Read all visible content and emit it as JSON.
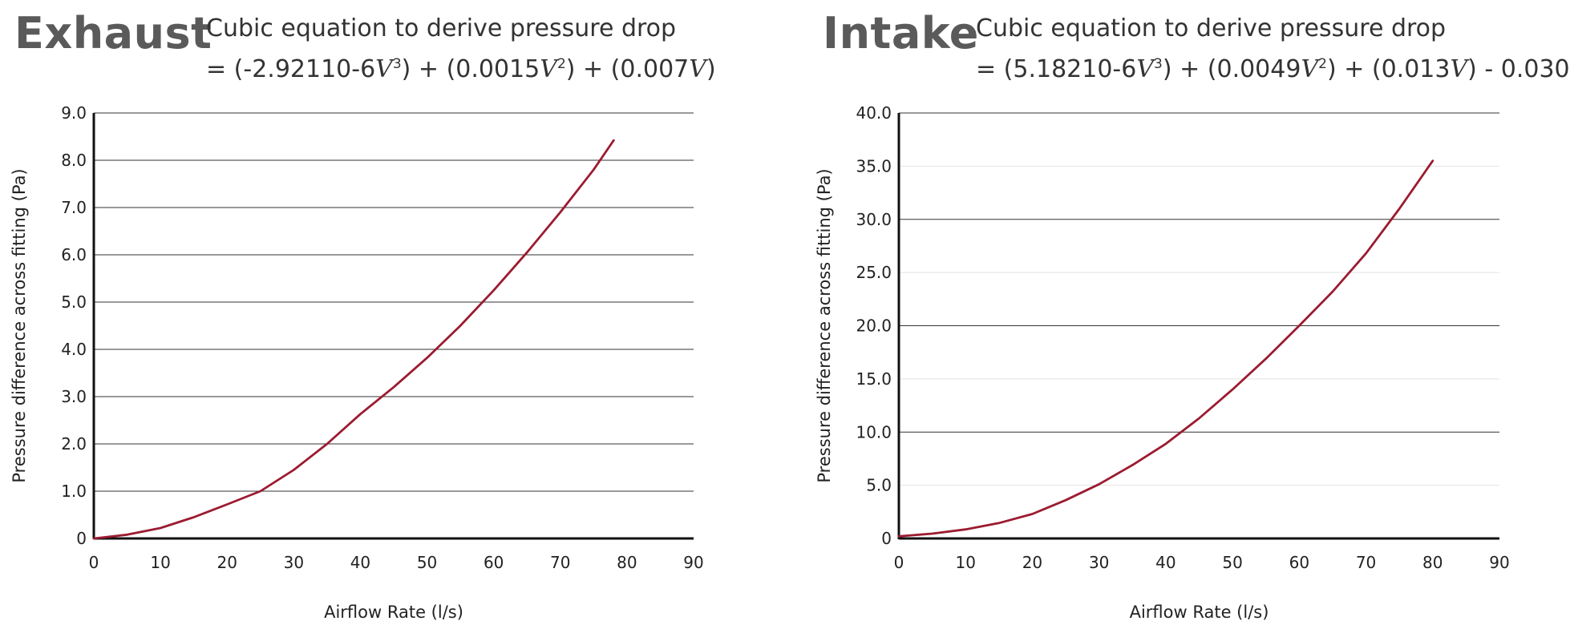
{
  "colors": {
    "curve": "#9b1b30",
    "grid": "#333333",
    "axis": "#111111"
  },
  "chart_data": [
    {
      "type": "line",
      "title": "Exhaust",
      "equation": {
        "line1": "Cubic equation to derive pressure drop",
        "prefix": "= (-2.92110-6",
        "t1_sup": "3",
        "mid1": ") + (0.0015",
        "t2_sup": "2",
        "mid2": ") + (0.007",
        "suffix": ")"
      },
      "var_symbol": "V",
      "xlabel": "Airflow Rate (l/s)",
      "ylabel": "Pressure difference across fitting (Pa)",
      "xlim": [
        0,
        90
      ],
      "ylim": [
        0,
        9
      ],
      "xticks": [
        0,
        10,
        20,
        30,
        40,
        50,
        60,
        70,
        80,
        90
      ],
      "xtick_labels": [
        "0",
        "10",
        "20",
        "30",
        "40",
        "50",
        "60",
        "70",
        "80",
        "90"
      ],
      "yticks": [
        0,
        1,
        2,
        3,
        4,
        5,
        6,
        7,
        8,
        9
      ],
      "ytick_labels": [
        "0",
        "1.0",
        "2.0",
        "3.0",
        "4.0",
        "5.0",
        "6.0",
        "7.0",
        "8.0",
        "9.0"
      ],
      "grid_y": [
        1,
        2,
        3,
        4,
        5,
        6,
        7,
        8,
        9
      ],
      "series": [
        {
          "name": "Exhaust",
          "x": [
            0,
            5,
            10,
            15,
            20,
            25,
            30,
            35,
            40,
            45,
            50,
            55,
            60,
            65,
            70,
            75,
            78
          ],
          "y": [
            0,
            0.08,
            0.22,
            0.45,
            0.72,
            1.0,
            1.45,
            2.0,
            2.63,
            3.2,
            3.82,
            4.5,
            5.25,
            6.05,
            6.9,
            7.8,
            8.42
          ]
        }
      ]
    },
    {
      "type": "line",
      "title": "Intake",
      "equation": {
        "line1": "Cubic equation to derive pressure drop",
        "prefix": "= (5.18210-6",
        "t1_sup": "3",
        "mid1": ") + (0.0049",
        "t2_sup": "2",
        "mid2": ") + (0.013",
        "suffix": ") - 0.030"
      },
      "var_symbol": "V",
      "xlabel": "Airflow Rate (l/s)",
      "ylabel": "Pressure difference across fitting (Pa)",
      "xlim": [
        0,
        90
      ],
      "ylim": [
        0,
        40
      ],
      "xticks": [
        0,
        10,
        20,
        30,
        40,
        50,
        60,
        70,
        80,
        90
      ],
      "xtick_labels": [
        "0",
        "10",
        "20",
        "30",
        "40",
        "50",
        "60",
        "70",
        "80",
        "90"
      ],
      "yticks": [
        0,
        5,
        10,
        15,
        20,
        25,
        30,
        35,
        40
      ],
      "ytick_labels": [
        "0",
        "5.0",
        "10.0",
        "15.0",
        "20.0",
        "25.0",
        "30.0",
        "35.0",
        "40.0"
      ],
      "grid_y": [
        10,
        20,
        30,
        40
      ],
      "grid_y_minor": [
        5,
        15,
        25,
        35
      ],
      "series": [
        {
          "name": "Intake",
          "x": [
            0,
            5,
            10,
            15,
            20,
            25,
            30,
            35,
            40,
            45,
            50,
            55,
            60,
            65,
            70,
            75,
            80
          ],
          "y": [
            0.2,
            0.45,
            0.85,
            1.45,
            2.3,
            3.6,
            5.1,
            6.9,
            8.9,
            11.3,
            14.0,
            16.9,
            20.0,
            23.2,
            26.8,
            31.0,
            35.5
          ]
        }
      ]
    }
  ]
}
